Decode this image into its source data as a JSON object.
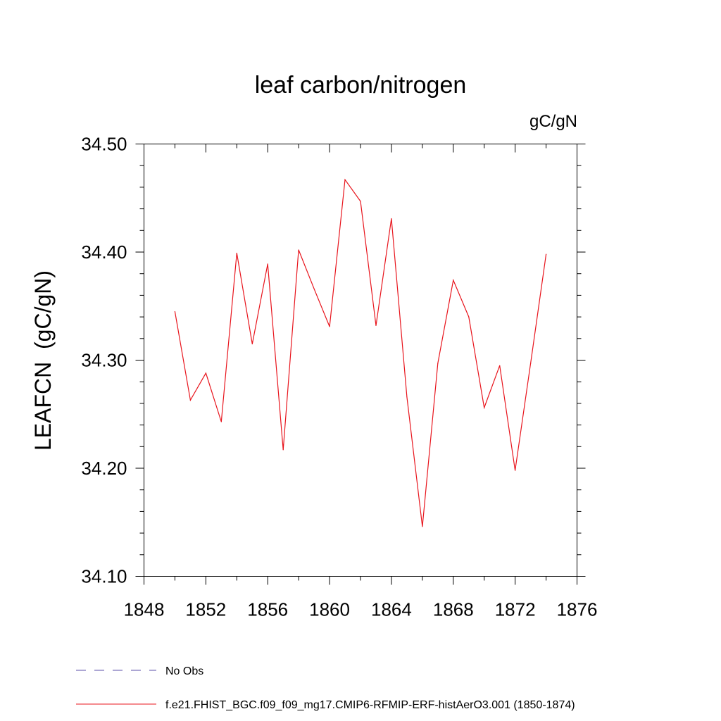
{
  "chart_data": {
    "type": "line",
    "title": "leaf carbon/nitrogen",
    "units_label": "gC/gN",
    "xlabel": "",
    "ylabel": "LEAFCN  (gC/gN)",
    "xlim": [
      1848,
      1876
    ],
    "ylim": [
      34.1,
      34.5
    ],
    "x_ticks": [
      1848,
      1852,
      1856,
      1860,
      1864,
      1868,
      1872,
      1876
    ],
    "x_tick_labels": [
      "1848",
      "1852",
      "1856",
      "1860",
      "1864",
      "1868",
      "1872",
      "1876"
    ],
    "x_minor_step": 2,
    "y_ticks": [
      34.1,
      34.2,
      34.3,
      34.4,
      34.5
    ],
    "y_tick_labels": [
      "34.10",
      "34.20",
      "34.30",
      "34.40",
      "34.50"
    ],
    "y_minor_step": 0.02,
    "grid": false,
    "series": [
      {
        "name": "No Obs",
        "color": "#5b4fa8",
        "dash": true,
        "x": [],
        "values": []
      },
      {
        "name": "f.e21.FHIST_BGC.f09_f09_mg17.CMIP6-RFMIP-ERF-histAerO3.001 (1850-1874)",
        "color": "#e8141c",
        "dash": false,
        "x": [
          1850,
          1851,
          1852,
          1853,
          1854,
          1855,
          1856,
          1857,
          1858,
          1859,
          1860,
          1861,
          1862,
          1863,
          1864,
          1865,
          1866,
          1867,
          1868,
          1869,
          1870,
          1871,
          1872,
          1873,
          1874
        ],
        "values": [
          34.345,
          34.263,
          34.288,
          34.243,
          34.399,
          34.315,
          34.389,
          34.217,
          34.402,
          34.366,
          34.331,
          34.467,
          34.447,
          34.332,
          34.431,
          34.266,
          34.146,
          34.297,
          34.374,
          34.34,
          34.256,
          34.295,
          34.198,
          34.297,
          34.398
        ]
      }
    ],
    "legend_position": "bottom-left"
  }
}
